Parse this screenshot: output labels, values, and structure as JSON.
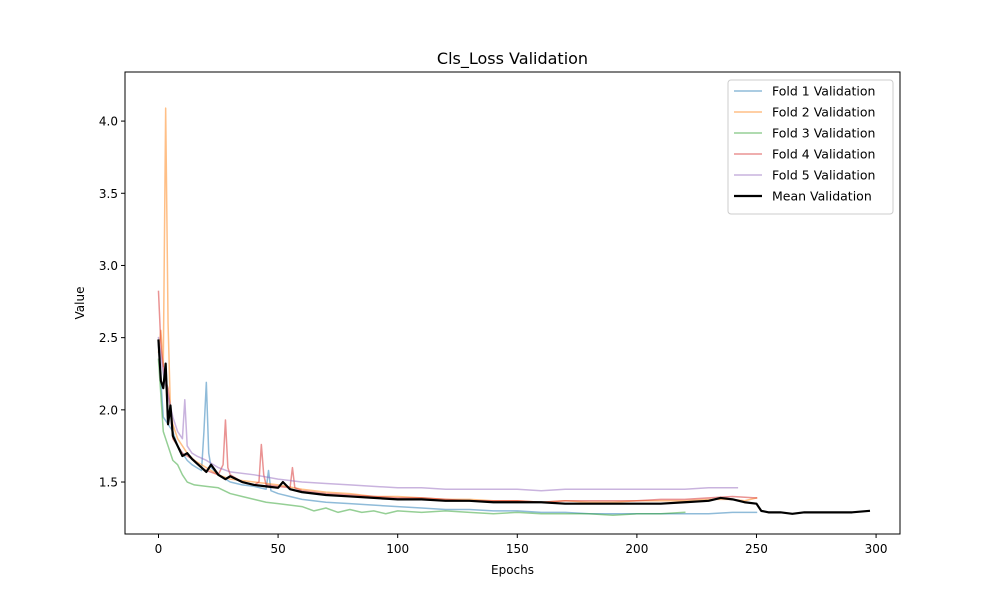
{
  "chart_data": {
    "type": "line",
    "title": "Cls_Loss Validation",
    "xlabel": "Epochs",
    "ylabel": "Value",
    "xlim": [
      -14,
      310
    ],
    "ylim": [
      1.14,
      4.34
    ],
    "xticks": [
      0,
      50,
      100,
      150,
      200,
      250,
      300
    ],
    "yticks": [
      1.5,
      2.0,
      2.5,
      3.0,
      3.5,
      4.0
    ],
    "xtick_labels": [
      "0",
      "50",
      "100",
      "150",
      "200",
      "250",
      "300"
    ],
    "ytick_labels": [
      "1.5",
      "2.0",
      "2.5",
      "3.0",
      "3.5",
      "4.0"
    ],
    "grid": false,
    "legend_position": "upper right",
    "series": [
      {
        "name": "Fold 1 Validation",
        "color": "#1f77b4",
        "opacity": 0.5,
        "linewidth": 1.5,
        "x": [
          0,
          2,
          4,
          6,
          8,
          10,
          12,
          14,
          16,
          18,
          19,
          20,
          21,
          22,
          25,
          30,
          35,
          40,
          45,
          46,
          47,
          50,
          55,
          60,
          70,
          80,
          90,
          100,
          110,
          120,
          130,
          140,
          150,
          160,
          170,
          180,
          190,
          200,
          210,
          220,
          230,
          240,
          250
        ],
        "y": [
          2.45,
          1.95,
          1.9,
          1.85,
          1.75,
          1.7,
          1.65,
          1.62,
          1.6,
          1.58,
          1.85,
          2.19,
          1.7,
          1.6,
          1.55,
          1.5,
          1.48,
          1.47,
          1.45,
          1.58,
          1.44,
          1.42,
          1.4,
          1.38,
          1.36,
          1.35,
          1.34,
          1.33,
          1.32,
          1.31,
          1.31,
          1.3,
          1.3,
          1.29,
          1.29,
          1.28,
          1.28,
          1.28,
          1.28,
          1.28,
          1.28,
          1.29,
          1.29
        ]
      },
      {
        "name": "Fold 2 Validation",
        "color": "#ff7f0e",
        "opacity": 0.5,
        "linewidth": 1.5,
        "x": [
          0,
          1,
          2,
          3,
          4,
          5,
          6,
          8,
          10,
          12,
          15,
          20,
          25,
          30,
          40,
          50,
          60,
          70,
          80,
          90,
          100,
          110,
          120,
          130,
          140,
          150,
          160,
          170,
          180,
          190,
          200,
          210,
          220,
          230,
          240,
          245,
          250
        ],
        "y": [
          2.4,
          2.55,
          2.3,
          4.09,
          2.6,
          2.0,
          1.9,
          1.8,
          1.75,
          1.7,
          1.65,
          1.6,
          1.55,
          1.52,
          1.5,
          1.48,
          1.45,
          1.43,
          1.42,
          1.4,
          1.4,
          1.39,
          1.38,
          1.38,
          1.37,
          1.37,
          1.36,
          1.37,
          1.36,
          1.36,
          1.37,
          1.37,
          1.37,
          1.38,
          1.38,
          1.37,
          1.39
        ]
      },
      {
        "name": "Fold 3 Validation",
        "color": "#2ca02c",
        "opacity": 0.5,
        "linewidth": 1.5,
        "x": [
          0,
          2,
          4,
          6,
          8,
          10,
          12,
          15,
          20,
          25,
          30,
          35,
          40,
          45,
          50,
          55,
          60,
          65,
          70,
          75,
          80,
          85,
          90,
          95,
          100,
          110,
          120,
          130,
          140,
          150,
          160,
          170,
          180,
          190,
          200,
          210,
          220
        ],
        "y": [
          2.35,
          1.85,
          1.75,
          1.65,
          1.62,
          1.55,
          1.5,
          1.48,
          1.47,
          1.46,
          1.42,
          1.4,
          1.38,
          1.36,
          1.35,
          1.34,
          1.33,
          1.3,
          1.32,
          1.29,
          1.31,
          1.29,
          1.3,
          1.28,
          1.3,
          1.29,
          1.3,
          1.29,
          1.28,
          1.29,
          1.28,
          1.28,
          1.28,
          1.27,
          1.28,
          1.28,
          1.29
        ]
      },
      {
        "name": "Fold 4 Validation",
        "color": "#d62728",
        "opacity": 0.5,
        "linewidth": 1.5,
        "x": [
          0,
          1,
          2,
          3,
          4,
          5,
          6,
          8,
          10,
          12,
          15,
          18,
          20,
          25,
          27,
          28,
          29,
          30,
          35,
          40,
          42,
          43,
          44,
          45,
          50,
          55,
          56,
          57,
          60,
          70,
          80,
          90,
          100,
          110,
          120,
          130,
          140,
          150,
          160,
          170,
          180,
          190,
          200,
          210,
          220,
          230,
          240,
          250
        ],
        "y": [
          2.82,
          2.45,
          2.3,
          2.2,
          2.15,
          2.0,
          1.8,
          1.75,
          1.7,
          1.68,
          1.65,
          1.6,
          1.58,
          1.55,
          1.62,
          1.93,
          1.6,
          1.55,
          1.5,
          1.48,
          1.5,
          1.76,
          1.55,
          1.48,
          1.47,
          1.46,
          1.6,
          1.46,
          1.44,
          1.42,
          1.41,
          1.4,
          1.39,
          1.39,
          1.38,
          1.37,
          1.37,
          1.37,
          1.36,
          1.37,
          1.37,
          1.37,
          1.37,
          1.38,
          1.38,
          1.39,
          1.4,
          1.39
        ]
      },
      {
        "name": "Fold 5 Validation",
        "color": "#9467bd",
        "opacity": 0.5,
        "linewidth": 1.5,
        "x": [
          0,
          2,
          4,
          6,
          8,
          10,
          11,
          12,
          14,
          16,
          20,
          25,
          30,
          40,
          50,
          60,
          70,
          80,
          90,
          100,
          110,
          120,
          130,
          140,
          150,
          160,
          170,
          180,
          190,
          200,
          210,
          220,
          230,
          240,
          242
        ],
        "y": [
          2.5,
          2.25,
          2.1,
          1.95,
          1.85,
          1.8,
          2.07,
          1.75,
          1.7,
          1.68,
          1.65,
          1.6,
          1.57,
          1.55,
          1.52,
          1.5,
          1.49,
          1.48,
          1.47,
          1.46,
          1.46,
          1.45,
          1.45,
          1.45,
          1.45,
          1.44,
          1.45,
          1.45,
          1.45,
          1.45,
          1.45,
          1.45,
          1.46,
          1.46,
          1.46
        ]
      },
      {
        "name": "Mean Validation",
        "color": "#000000",
        "opacity": 1.0,
        "linewidth": 2.2,
        "x": [
          0,
          1,
          2,
          3,
          4,
          5,
          6,
          8,
          10,
          12,
          14,
          16,
          18,
          20,
          22,
          25,
          28,
          30,
          35,
          40,
          45,
          50,
          52,
          55,
          60,
          70,
          80,
          90,
          100,
          110,
          120,
          130,
          140,
          150,
          160,
          170,
          180,
          190,
          200,
          210,
          220,
          230,
          235,
          240,
          245,
          250,
          252,
          255,
          260,
          265,
          270,
          280,
          290,
          297
        ],
        "y": [
          2.48,
          2.2,
          2.15,
          2.32,
          1.9,
          2.03,
          1.82,
          1.75,
          1.68,
          1.7,
          1.66,
          1.63,
          1.6,
          1.57,
          1.62,
          1.55,
          1.52,
          1.54,
          1.5,
          1.48,
          1.47,
          1.46,
          1.5,
          1.45,
          1.43,
          1.41,
          1.4,
          1.39,
          1.38,
          1.38,
          1.37,
          1.37,
          1.36,
          1.36,
          1.36,
          1.35,
          1.35,
          1.35,
          1.35,
          1.35,
          1.36,
          1.37,
          1.39,
          1.38,
          1.36,
          1.35,
          1.3,
          1.29,
          1.29,
          1.28,
          1.29,
          1.29,
          1.29,
          1.3
        ]
      }
    ]
  }
}
